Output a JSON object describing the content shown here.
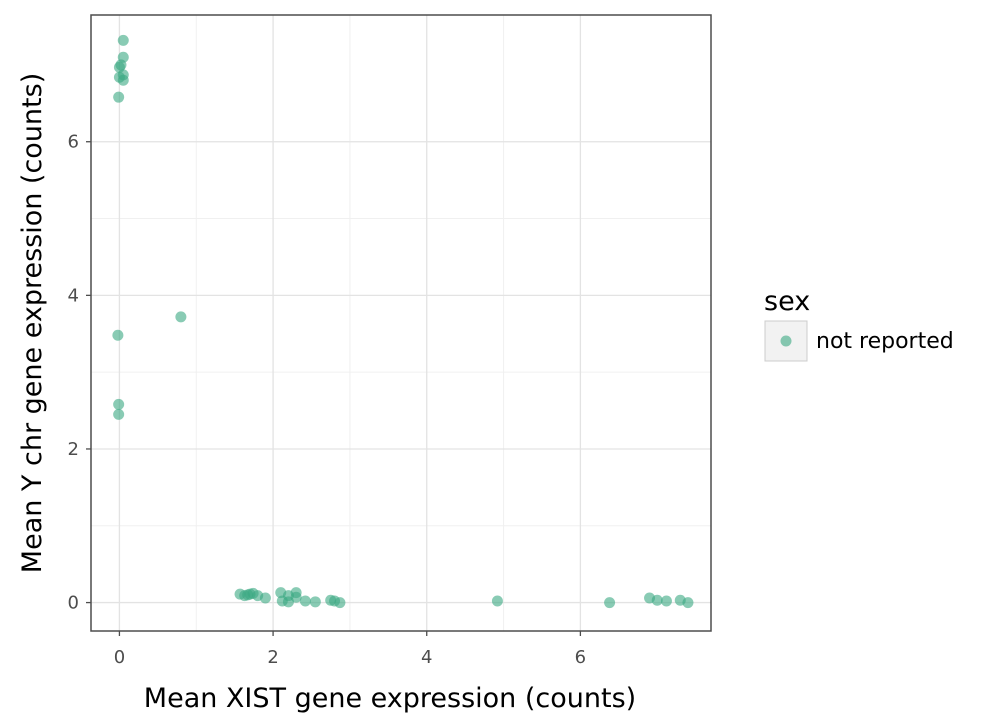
{
  "chart_data": {
    "type": "scatter",
    "xlabel": "Mean XIST gene expression (counts)",
    "ylabel": "Mean Y chr gene expression (counts)",
    "xlim": [
      -0.37,
      7.7
    ],
    "ylim": [
      -0.37,
      7.65
    ],
    "x_ticks": [
      0,
      2,
      4,
      6
    ],
    "x_tick_labels": [
      "0",
      "2",
      "4",
      "6"
    ],
    "y_ticks": [
      0,
      2,
      4,
      6
    ],
    "y_tick_labels": [
      "0",
      "2",
      "4",
      "6"
    ],
    "grid": true,
    "legend": {
      "title": "sex",
      "position": "right",
      "entries": [
        "not reported"
      ]
    },
    "series": [
      {
        "name": "not reported",
        "color": "#3aa882",
        "points": [
          {
            "x": 0.05,
            "y": 7.32
          },
          {
            "x": 0.05,
            "y": 7.1
          },
          {
            "x": 0.02,
            "y": 7.0
          },
          {
            "x": 0.0,
            "y": 6.97
          },
          {
            "x": 0.05,
            "y": 6.87
          },
          {
            "x": 0.0,
            "y": 6.84
          },
          {
            "x": 0.05,
            "y": 6.8
          },
          {
            "x": -0.01,
            "y": 6.58
          },
          {
            "x": 0.8,
            "y": 3.72
          },
          {
            "x": -0.02,
            "y": 3.48
          },
          {
            "x": -0.01,
            "y": 2.58
          },
          {
            "x": -0.01,
            "y": 2.45
          },
          {
            "x": 1.57,
            "y": 0.11
          },
          {
            "x": 1.63,
            "y": 0.09
          },
          {
            "x": 1.67,
            "y": 0.1
          },
          {
            "x": 1.7,
            "y": 0.11
          },
          {
            "x": 1.74,
            "y": 0.12
          },
          {
            "x": 1.8,
            "y": 0.09
          },
          {
            "x": 1.9,
            "y": 0.06
          },
          {
            "x": 2.1,
            "y": 0.13
          },
          {
            "x": 2.12,
            "y": 0.02
          },
          {
            "x": 2.2,
            "y": 0.09
          },
          {
            "x": 2.2,
            "y": 0.01
          },
          {
            "x": 2.3,
            "y": 0.13
          },
          {
            "x": 2.3,
            "y": 0.07
          },
          {
            "x": 2.42,
            "y": 0.02
          },
          {
            "x": 2.55,
            "y": 0.01
          },
          {
            "x": 2.75,
            "y": 0.03
          },
          {
            "x": 2.8,
            "y": 0.02
          },
          {
            "x": 2.87,
            "y": 0.0
          },
          {
            "x": 4.92,
            "y": 0.02
          },
          {
            "x": 6.38,
            "y": 0.0
          },
          {
            "x": 6.9,
            "y": 0.06
          },
          {
            "x": 7.0,
            "y": 0.03
          },
          {
            "x": 7.12,
            "y": 0.02
          },
          {
            "x": 7.3,
            "y": 0.03
          },
          {
            "x": 7.4,
            "y": 0.0
          }
        ]
      }
    ]
  }
}
